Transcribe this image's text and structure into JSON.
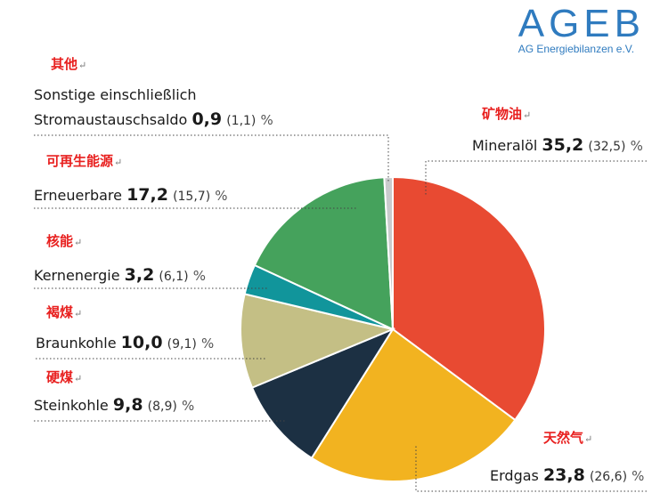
{
  "logo": {
    "name": "AGEB",
    "subtitle": "AG Energiebilanzen e.V."
  },
  "return_mark": "↵",
  "chart_data": {
    "type": "pie",
    "unit": "%",
    "slices": [
      {
        "label": "Mineralöl",
        "label_cn": "矿物油",
        "value": 35.2,
        "value_text": "35,2",
        "prev_text": "(32,5)",
        "color": "#e84a32"
      },
      {
        "label": "Erdgas",
        "label_cn": "天然气",
        "value": 23.8,
        "value_text": "23,8",
        "prev_text": "(26,6)",
        "color": "#f2b320"
      },
      {
        "label": "Steinkohle",
        "label_cn": "硬煤",
        "value": 9.8,
        "value_text": "9,8",
        "prev_text": "(8,9)",
        "color": "#1c3043"
      },
      {
        "label": "Braunkohle",
        "label_cn": "褐煤",
        "value": 10.0,
        "value_text": "10,0",
        "prev_text": "(9,1)",
        "color": "#c4bf85"
      },
      {
        "label": "Kernenergie",
        "label_cn": "核能",
        "value": 3.2,
        "value_text": "3,2",
        "prev_text": "(6,1)",
        "color": "#11959b"
      },
      {
        "label": "Erneuerbare",
        "label_cn": "可再生能源",
        "value": 17.2,
        "value_text": "17,2",
        "prev_text": "(15,7)",
        "color": "#45a25c"
      },
      {
        "label": "Sonstige einschließlich",
        "label_line2": "Stromaustauschsaldo",
        "label_cn": "其他",
        "value": 0.9,
        "value_text": "0,9",
        "prev_text": "(1,1)",
        "color": "#c9cbcd"
      }
    ]
  }
}
